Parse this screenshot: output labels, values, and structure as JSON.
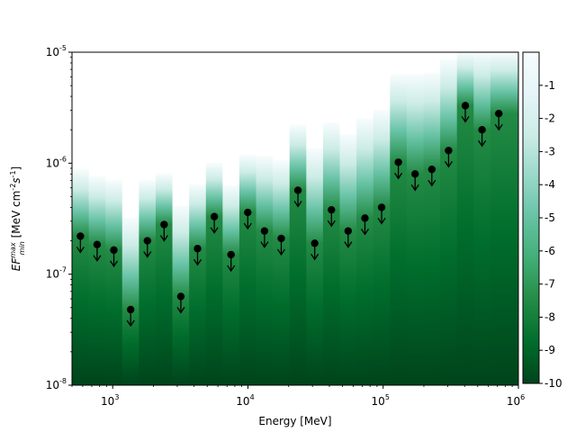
{
  "chart_data": {
    "type": "scatter",
    "title": "",
    "xlabel": "Energy [MeV]",
    "ylabel_parts": [
      "EF",
      "max",
      "min",
      " [MeV cm",
      "-2",
      "s",
      "-1",
      "]"
    ],
    "x_scale": "log",
    "y_scale": "log",
    "xlim": [
      500,
      1000000
    ],
    "ylim": [
      1e-08,
      1e-05
    ],
    "x_major_ticks": [
      {
        "value": 1000,
        "base": "10",
        "exp": "3"
      },
      {
        "value": 10000,
        "base": "10",
        "exp": "4"
      },
      {
        "value": 100000,
        "base": "10",
        "exp": "5"
      },
      {
        "value": 1000000,
        "base": "10",
        "exp": "6"
      }
    ],
    "y_major_ticks": [
      {
        "value": 1e-08,
        "base": "10",
        "exp": "-8"
      },
      {
        "value": 1e-07,
        "base": "10",
        "exp": "-7"
      },
      {
        "value": 1e-06,
        "base": "10",
        "exp": "-6"
      },
      {
        "value": 1e-05,
        "base": "10",
        "exp": "-5"
      }
    ],
    "colorbar": {
      "range": [
        -10,
        0
      ],
      "ticks": [
        "-1",
        "-2",
        "-3",
        "-4",
        "-5",
        "-6",
        "-7",
        "-8",
        "-9",
        "-10"
      ],
      "tick_values": [
        -1,
        -2,
        -3,
        -4,
        -5,
        -6,
        -7,
        -8,
        -9,
        -10
      ],
      "colormap": "BuGn_r",
      "stops": [
        "#00441b",
        "#006d2c",
        "#238b45",
        "#41ae76",
        "#66c2a4",
        "#99d8c9",
        "#ccece6",
        "#e5f5f9",
        "#f7fcfd"
      ]
    },
    "energy_bins": [
      {
        "lo": 500,
        "hi": 665,
        "e": 577,
        "ul": 2.2e-07,
        "top": 8.8e-07
      },
      {
        "lo": 665,
        "hi": 884,
        "e": 767,
        "ul": 1.85e-07,
        "top": 7.6e-07
      },
      {
        "lo": 884,
        "hi": 1175,
        "e": 1020,
        "ul": 1.65e-07,
        "top": 7e-07
      },
      {
        "lo": 1175,
        "hi": 1563,
        "e": 1357,
        "ul": 4.8e-08,
        "top": 3.2e-07
      },
      {
        "lo": 1563,
        "hi": 2078,
        "e": 1805,
        "ul": 2e-07,
        "top": 7e-07
      },
      {
        "lo": 2078,
        "hi": 2763,
        "e": 2400,
        "ul": 2.8e-07,
        "top": 8e-07
      },
      {
        "lo": 2763,
        "hi": 3674,
        "e": 3190,
        "ul": 6.3e-08,
        "top": 4.1e-07
      },
      {
        "lo": 3674,
        "hi": 4886,
        "e": 4240,
        "ul": 1.7e-07,
        "top": 6.4e-07
      },
      {
        "lo": 4886,
        "hi": 6497,
        "e": 5640,
        "ul": 3.3e-07,
        "top": 1e-06
      },
      {
        "lo": 6497,
        "hi": 8639,
        "e": 7500,
        "ul": 1.5e-07,
        "top": 6.3e-07
      },
      {
        "lo": 8639,
        "hi": 11487,
        "e": 9970,
        "ul": 3.6e-07,
        "top": 1.18e-06
      },
      {
        "lo": 11487,
        "hi": 15275,
        "e": 13260,
        "ul": 2.45e-07,
        "top": 1.15e-06
      },
      {
        "lo": 15275,
        "hi": 20311,
        "e": 17630,
        "ul": 2.1e-07,
        "top": 1.05e-06
      },
      {
        "lo": 20311,
        "hi": 27009,
        "e": 23440,
        "ul": 5.7e-07,
        "top": 2.2e-06
      },
      {
        "lo": 27009,
        "hi": 35913,
        "e": 31170,
        "ul": 1.9e-07,
        "top": 1.35e-06
      },
      {
        "lo": 35913,
        "hi": 47755,
        "e": 41450,
        "ul": 3.8e-07,
        "top": 2.3e-06
      },
      {
        "lo": 47755,
        "hi": 63501,
        "e": 55100,
        "ul": 2.45e-07,
        "top": 1.8e-06
      },
      {
        "lo": 63501,
        "hi": 84439,
        "e": 73300,
        "ul": 3.2e-07,
        "top": 2.5e-06
      },
      {
        "lo": 84439,
        "hi": 112281,
        "e": 97400,
        "ul": 4e-07,
        "top": 3e-06
      },
      {
        "lo": 112281,
        "hi": 149302,
        "e": 129500,
        "ul": 1.02e-06,
        "top": 6.3e-06
      },
      {
        "lo": 149302,
        "hi": 198532,
        "e": 172200,
        "ul": 8e-07,
        "top": 6.3e-06
      },
      {
        "lo": 198532,
        "hi": 263992,
        "e": 229000,
        "ul": 8.8e-07,
        "top": 6.5e-06
      },
      {
        "lo": 263992,
        "hi": 351038,
        "e": 304500,
        "ul": 1.3e-06,
        "top": 8.5e-06
      },
      {
        "lo": 351038,
        "hi": 466784,
        "e": 405000,
        "ul": 3.3e-06,
        "top": 1e-05
      },
      {
        "lo": 466784,
        "hi": 620697,
        "e": 538400,
        "ul": 2e-06,
        "top": 1e-05
      },
      {
        "lo": 620697,
        "hi": 1000000,
        "e": 716000,
        "ul": 2.8e-06,
        "top": 1e-05
      }
    ]
  }
}
